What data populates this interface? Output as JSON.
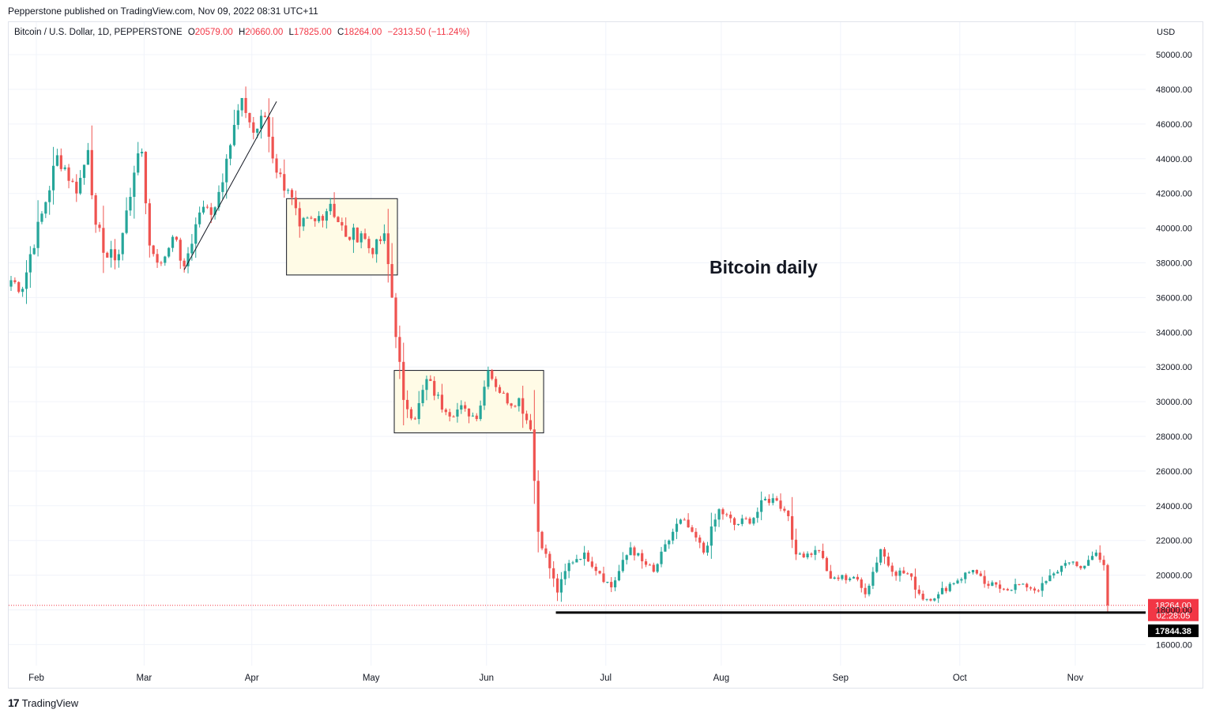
{
  "header": {
    "published": "Pepperstone published on TradingView.com, Nov 09, 2022 08:31 UTC+11"
  },
  "legend": {
    "symbol": "Bitcoin / U.S. Dollar, 1D, PEPPERSTONE",
    "open_label": "O",
    "open": "20579.00",
    "high_label": "H",
    "high": "20660.00",
    "low_label": "L",
    "low": "17825.00",
    "close_label": "C",
    "close": "18264.00",
    "change": "−2313.50 (−11.24%)"
  },
  "currency": "USD",
  "footer": {
    "logo": "17",
    "brand": "TradingView"
  },
  "colors": {
    "up": "#26a69a",
    "down": "#ef5350",
    "box_fill": "#fffbe6",
    "grid": "#f0f3fa",
    "accent": "#f23645"
  },
  "chart_data": {
    "type": "candlestick",
    "title": "Bitcoin daily",
    "ylim": [
      15000,
      51500
    ],
    "y_ticks": [
      16000,
      18000,
      20000,
      22000,
      24000,
      26000,
      28000,
      30000,
      32000,
      34000,
      36000,
      38000,
      40000,
      42000,
      44000,
      46000,
      48000,
      50000
    ],
    "x_labels": [
      "Feb",
      "Mar",
      "Apr",
      "May",
      "Jun",
      "Jul",
      "Aug",
      "Sep",
      "Oct",
      "Nov"
    ],
    "month_start_index": [
      0,
      28,
      56,
      87,
      117,
      148,
      178,
      209,
      240,
      270
    ],
    "first_date": "2022-01-27",
    "price_labels": {
      "last": "18264.00",
      "countdown": "02:28:05",
      "support": "17844.38"
    },
    "support_level": 17844.38,
    "last_close": 18264.0,
    "annotations": [
      {
        "type": "trendline",
        "from": [
          "2022-03-13",
          37600
        ],
        "to": [
          "2022-04-06",
          47300
        ]
      },
      {
        "type": "range_box",
        "from": "2022-04-09",
        "to": "2022-05-07",
        "low": 37300,
        "high": 41700
      },
      {
        "type": "range_box",
        "from": "2022-05-07",
        "to": "2022-06-14",
        "low": 28200,
        "high": 31800
      },
      {
        "type": "horizontal_line",
        "from": "2022-06-18",
        "price": 17844.38
      }
    ],
    "ohlc_daily_close_anchors": [
      [
        "2022-01-27",
        37000
      ],
      [
        "2022-01-30",
        36500
      ],
      [
        "2022-02-01",
        38500
      ],
      [
        "2022-02-05",
        41500
      ],
      [
        "2022-02-08",
        44200
      ],
      [
        "2022-02-10",
        43500
      ],
      [
        "2022-02-13",
        42000
      ],
      [
        "2022-02-16",
        44500
      ],
      [
        "2022-02-18",
        40200
      ],
      [
        "2022-02-21",
        38300
      ],
      [
        "2022-02-24",
        38500
      ],
      [
        "2022-02-28",
        43200
      ],
      [
        "2022-03-02",
        44400
      ],
      [
        "2022-03-04",
        39000
      ],
      [
        "2022-03-07",
        38000
      ],
      [
        "2022-03-10",
        39500
      ],
      [
        "2022-03-13",
        37800
      ],
      [
        "2022-03-17",
        40900
      ],
      [
        "2022-03-21",
        41200
      ],
      [
        "2022-03-24",
        44000
      ],
      [
        "2022-03-28",
        47500
      ],
      [
        "2022-03-31",
        45500
      ],
      [
        "2022-04-03",
        46400
      ],
      [
        "2022-04-06",
        43200
      ],
      [
        "2022-04-09",
        42200
      ],
      [
        "2022-04-12",
        40100
      ],
      [
        "2022-04-16",
        40400
      ],
      [
        "2022-04-20",
        41400
      ],
      [
        "2022-04-24",
        39500
      ],
      [
        "2022-04-28",
        39700
      ],
      [
        "2022-05-01",
        38500
      ],
      [
        "2022-05-04",
        39700
      ],
      [
        "2022-05-06",
        36000
      ],
      [
        "2022-05-09",
        30100
      ],
      [
        "2022-05-12",
        29000
      ],
      [
        "2022-05-15",
        31300
      ],
      [
        "2022-05-20",
        29400
      ],
      [
        "2022-05-25",
        29600
      ],
      [
        "2022-05-28",
        29000
      ],
      [
        "2022-05-31",
        31800
      ],
      [
        "2022-06-05",
        29900
      ],
      [
        "2022-06-08",
        30200
      ],
      [
        "2022-06-11",
        28400
      ],
      [
        "2022-06-13",
        22500
      ],
      [
        "2022-06-16",
        20400
      ],
      [
        "2022-06-18",
        19000
      ],
      [
        "2022-06-21",
        20700
      ],
      [
        "2022-06-25",
        21300
      ],
      [
        "2022-06-29",
        20100
      ],
      [
        "2022-07-02",
        19300
      ],
      [
        "2022-07-07",
        21600
      ],
      [
        "2022-07-10",
        20800
      ],
      [
        "2022-07-13",
        20200
      ],
      [
        "2022-07-18",
        22500
      ],
      [
        "2022-07-20",
        23200
      ],
      [
        "2022-07-23",
        22500
      ],
      [
        "2022-07-26",
        21300
      ],
      [
        "2022-07-30",
        23800
      ],
      [
        "2022-08-03",
        22900
      ],
      [
        "2022-08-08",
        23300
      ],
      [
        "2022-08-11",
        24400
      ],
      [
        "2022-08-14",
        24300
      ],
      [
        "2022-08-17",
        23400
      ],
      [
        "2022-08-19",
        21200
      ],
      [
        "2022-08-25",
        21400
      ],
      [
        "2022-08-28",
        19800
      ],
      [
        "2022-09-03",
        19900
      ],
      [
        "2022-09-06",
        18900
      ],
      [
        "2022-09-10",
        21500
      ],
      [
        "2022-09-13",
        20200
      ],
      [
        "2022-09-17",
        20100
      ],
      [
        "2022-09-21",
        18600
      ],
      [
        "2022-09-25",
        18900
      ],
      [
        "2022-09-28",
        19500
      ],
      [
        "2022-10-04",
        20300
      ],
      [
        "2022-10-07",
        19500
      ],
      [
        "2022-10-12",
        19200
      ],
      [
        "2022-10-17",
        19500
      ],
      [
        "2022-10-21",
        19100
      ],
      [
        "2022-10-25",
        20100
      ],
      [
        "2022-10-28",
        20700
      ],
      [
        "2022-11-01",
        20400
      ],
      [
        "2022-11-05",
        21300
      ],
      [
        "2022-11-07",
        20580
      ],
      [
        "2022-11-08",
        18264
      ]
    ]
  }
}
